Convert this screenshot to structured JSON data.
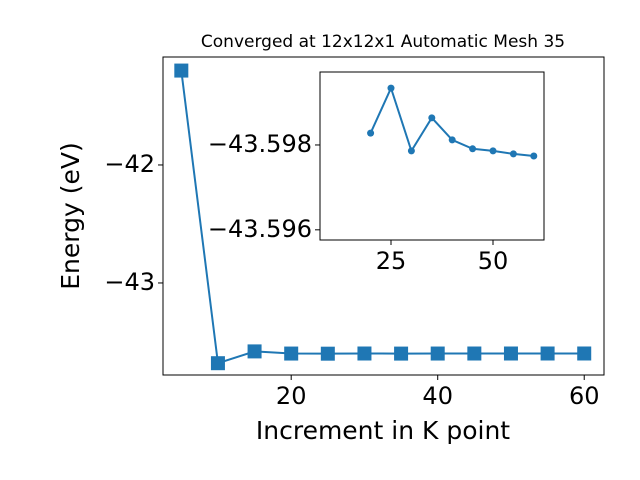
{
  "chart_data": [
    {
      "type": "line",
      "title": "Converged at 12x12x1 Automatic Mesh 35",
      "x_label": "Increment in K point",
      "y_label": "Energy (eV)",
      "x": [
        5,
        10,
        15,
        20,
        25,
        30,
        35,
        40,
        45,
        50,
        55,
        60
      ],
      "series": [
        {
          "color": "#1f77b4",
          "marker": "square",
          "values": [
            -41.2,
            -43.68,
            -43.58,
            -43.59828,
            -43.59934,
            -43.59786,
            -43.59864,
            -43.59812,
            -43.59791,
            -43.59786,
            -43.59779,
            -43.59774
          ]
        }
      ],
      "xlim": [
        2.5,
        62.7
      ],
      "xticks": [
        20,
        40,
        60
      ],
      "ylim": [
        -43.78,
        -41.085
      ],
      "yticks": [
        {
          "value": -43,
          "label": "−43"
        },
        {
          "value": -42,
          "label": "−42"
        }
      ]
    },
    {
      "type": "line",
      "x": [
        20,
        25,
        30,
        35,
        40,
        45,
        50,
        55,
        60
      ],
      "series": [
        {
          "color": "#1f77b4",
          "marker": "circle",
          "values": [
            -43.59828,
            -43.59934,
            -43.59786,
            -43.59864,
            -43.59812,
            -43.59791,
            -43.59786,
            -43.59779,
            -43.59774
          ]
        }
      ],
      "xlim": [
        7.6,
        62.5
      ],
      "xticks": [
        25,
        50
      ],
      "ylim": [
        -43.59576,
        -43.59972
      ],
      "yticks": [
        {
          "value": -43.596,
          "label": "−43.596"
        },
        {
          "value": -43.598,
          "label": "−43.598"
        }
      ]
    }
  ]
}
